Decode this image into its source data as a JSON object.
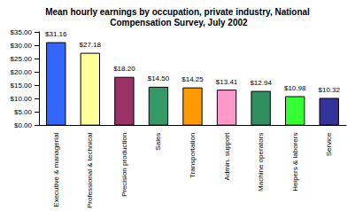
{
  "chart_data": {
    "type": "bar",
    "title": "Mean hourly earnings by occupation, private industry, National Compensation Survey, July 2002",
    "categories": [
      "Executive & managerial",
      "Professional & technical",
      "Precision production",
      "Sales",
      "Transportation",
      "Admin. support",
      "Machine operators",
      "Helpers & laborers",
      "Service"
    ],
    "values": [
      31.16,
      27.18,
      18.2,
      14.5,
      14.25,
      13.41,
      12.94,
      10.98,
      10.32
    ],
    "value_labels": [
      "$31.16",
      "$27.18",
      "$18.20",
      "$14.50",
      "$14.25",
      "$13.41",
      "$12.94",
      "$10.98",
      "$10.32"
    ],
    "colors": [
      "#3366ff",
      "#ffff99",
      "#993366",
      "#339966",
      "#ff9900",
      "#ff99cc",
      "#2f8f5f",
      "#33ff33",
      "#333399"
    ],
    "ylim": [
      0,
      35
    ],
    "yticks": [
      {
        "value": 0,
        "label": "$0.00"
      },
      {
        "value": 5,
        "label": "$5.00"
      },
      {
        "value": 10,
        "label": "$10.00"
      },
      {
        "value": 15,
        "label": "$15.00"
      },
      {
        "value": 20,
        "label": "$20.00"
      },
      {
        "value": 25,
        "label": "$25.00"
      },
      {
        "value": 30,
        "label": "$30.00"
      },
      {
        "value": 35,
        "label": "$35.00"
      }
    ],
    "data_labels": true,
    "grid": false
  }
}
